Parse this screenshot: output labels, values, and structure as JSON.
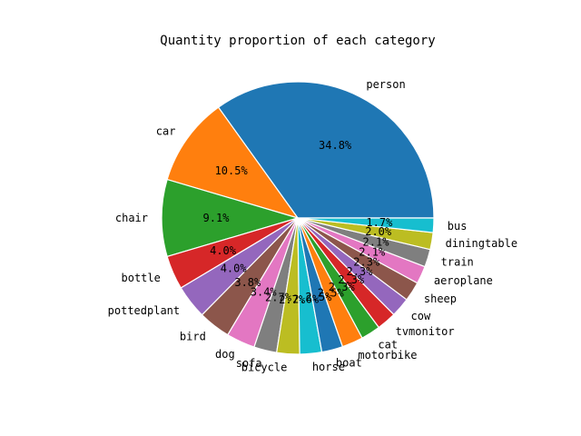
{
  "chart_data": {
    "type": "pie",
    "title": "Quantity proportion of each category",
    "start_angle_deg": 0,
    "direction": "counterclockwise",
    "slices": [
      {
        "label": "person",
        "value": 34.8,
        "pct_label": "34.8%",
        "color": "#1f77b4"
      },
      {
        "label": "car",
        "value": 10.5,
        "pct_label": "10.5%",
        "color": "#ff7f0e"
      },
      {
        "label": "chair",
        "value": 9.1,
        "pct_label": "9.1%",
        "color": "#2ca02c"
      },
      {
        "label": "bottle",
        "value": 4.0,
        "pct_label": "4.0%",
        "color": "#d62728"
      },
      {
        "label": "pottedplant",
        "value": 4.0,
        "pct_label": "4.0%",
        "color": "#9467bd"
      },
      {
        "label": "bird",
        "value": 3.8,
        "pct_label": "3.8%",
        "color": "#8c564b"
      },
      {
        "label": "dog",
        "value": 3.4,
        "pct_label": "3.4%",
        "color": "#e377c2"
      },
      {
        "label": "sofa",
        "value": 2.7,
        "pct_label": "2.7%",
        "color": "#7f7f7f"
      },
      {
        "label": "bicycle",
        "value": 2.7,
        "pct_label": "2.7%",
        "color": "#bcbd22"
      },
      {
        "label": "horse",
        "value": 2.6,
        "pct_label": "2.6%",
        "color": "#17becf"
      },
      {
        "label": "boat",
        "value": 2.5,
        "pct_label": "2.5%",
        "color": "#1f77b4"
      },
      {
        "label": "motorbike",
        "value": 2.5,
        "pct_label": "2.5%",
        "color": "#ff7f0e"
      },
      {
        "label": "cat",
        "value": 2.3,
        "pct_label": "2.3%",
        "color": "#2ca02c"
      },
      {
        "label": "tvmonitor",
        "value": 2.3,
        "pct_label": "2.3%",
        "color": "#d62728"
      },
      {
        "label": "cow",
        "value": 2.3,
        "pct_label": "2.3%",
        "color": "#9467bd"
      },
      {
        "label": "sheep",
        "value": 2.3,
        "pct_label": "2.3%",
        "color": "#8c564b"
      },
      {
        "label": "aeroplane",
        "value": 2.1,
        "pct_label": "2.1%",
        "color": "#e377c2"
      },
      {
        "label": "train",
        "value": 2.1,
        "pct_label": "2.1%",
        "color": "#7f7f7f"
      },
      {
        "label": "diningtable",
        "value": 2.0,
        "pct_label": "2.0%",
        "color": "#bcbd22"
      },
      {
        "label": "bus",
        "value": 1.7,
        "pct_label": "1.7%",
        "color": "#17becf"
      }
    ]
  }
}
